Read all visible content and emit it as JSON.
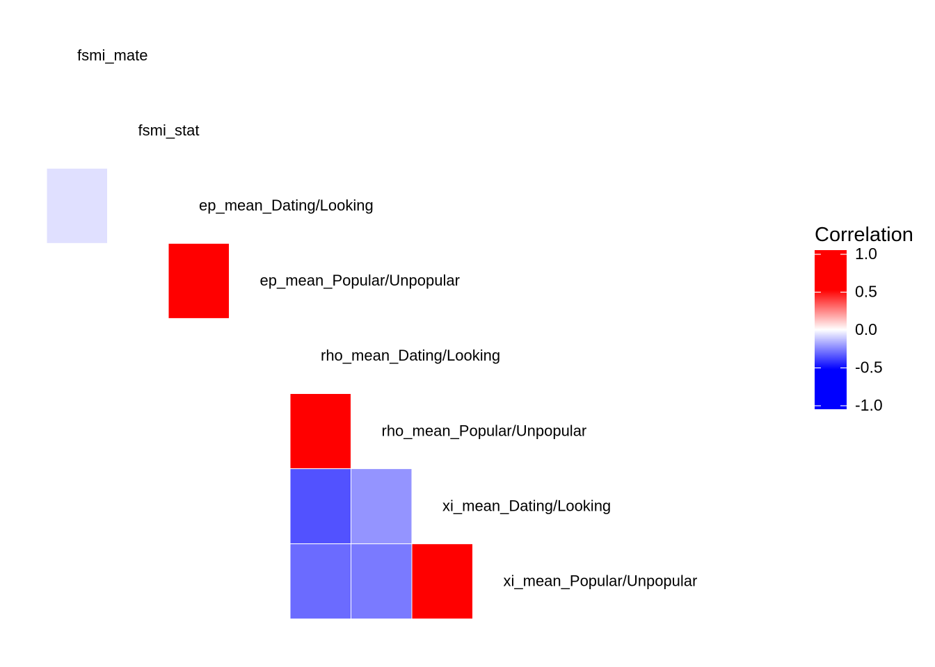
{
  "chart_data": {
    "type": "heatmap",
    "title": "",
    "xlabel": "",
    "ylabel": "",
    "variables": [
      "fsmi_mate",
      "fsmi_stat",
      "ep_mean_Dating/Looking",
      "ep_mean_Popular/Unpopular",
      "rho_mean_Dating/Looking",
      "rho_mean_Popular/Unpopular",
      "xi_mean_Dating/Looking",
      "xi_mean_Popular/Unpopular"
    ],
    "cells": [
      {
        "row": "ep_mean_Dating/Looking",
        "col": "fsmi_mate",
        "value": -0.12
      },
      {
        "row": "ep_mean_Popular/Unpopular",
        "col": "ep_mean_Dating/Looking",
        "value": 1.0
      },
      {
        "row": "rho_mean_Popular/Unpopular",
        "col": "rho_mean_Dating/Looking",
        "value": 1.0
      },
      {
        "row": "xi_mean_Dating/Looking",
        "col": "rho_mean_Dating/Looking",
        "value": -0.68
      },
      {
        "row": "xi_mean_Dating/Looking",
        "col": "rho_mean_Popular/Unpopular",
        "value": -0.42
      },
      {
        "row": "xi_mean_Popular/Unpopular",
        "col": "rho_mean_Dating/Looking",
        "value": -0.58
      },
      {
        "row": "xi_mean_Popular/Unpopular",
        "col": "rho_mean_Popular/Unpopular",
        "value": -0.52
      },
      {
        "row": "xi_mean_Popular/Unpopular",
        "col": "xi_mean_Dating/Looking",
        "value": 1.0
      }
    ],
    "color_scale": {
      "low": "#0000ff",
      "mid": "#ffffff",
      "high": "#ff0000",
      "limits": [
        -1,
        1
      ]
    },
    "legend": {
      "title": "Correlation",
      "position": "right",
      "ticks": [
        1.0,
        0.5,
        0.0,
        -0.5,
        -1.0
      ],
      "tick_labels": [
        "1.0",
        "0.5",
        "0.0",
        "-0.5",
        "-1.0"
      ]
    },
    "grid": false
  }
}
